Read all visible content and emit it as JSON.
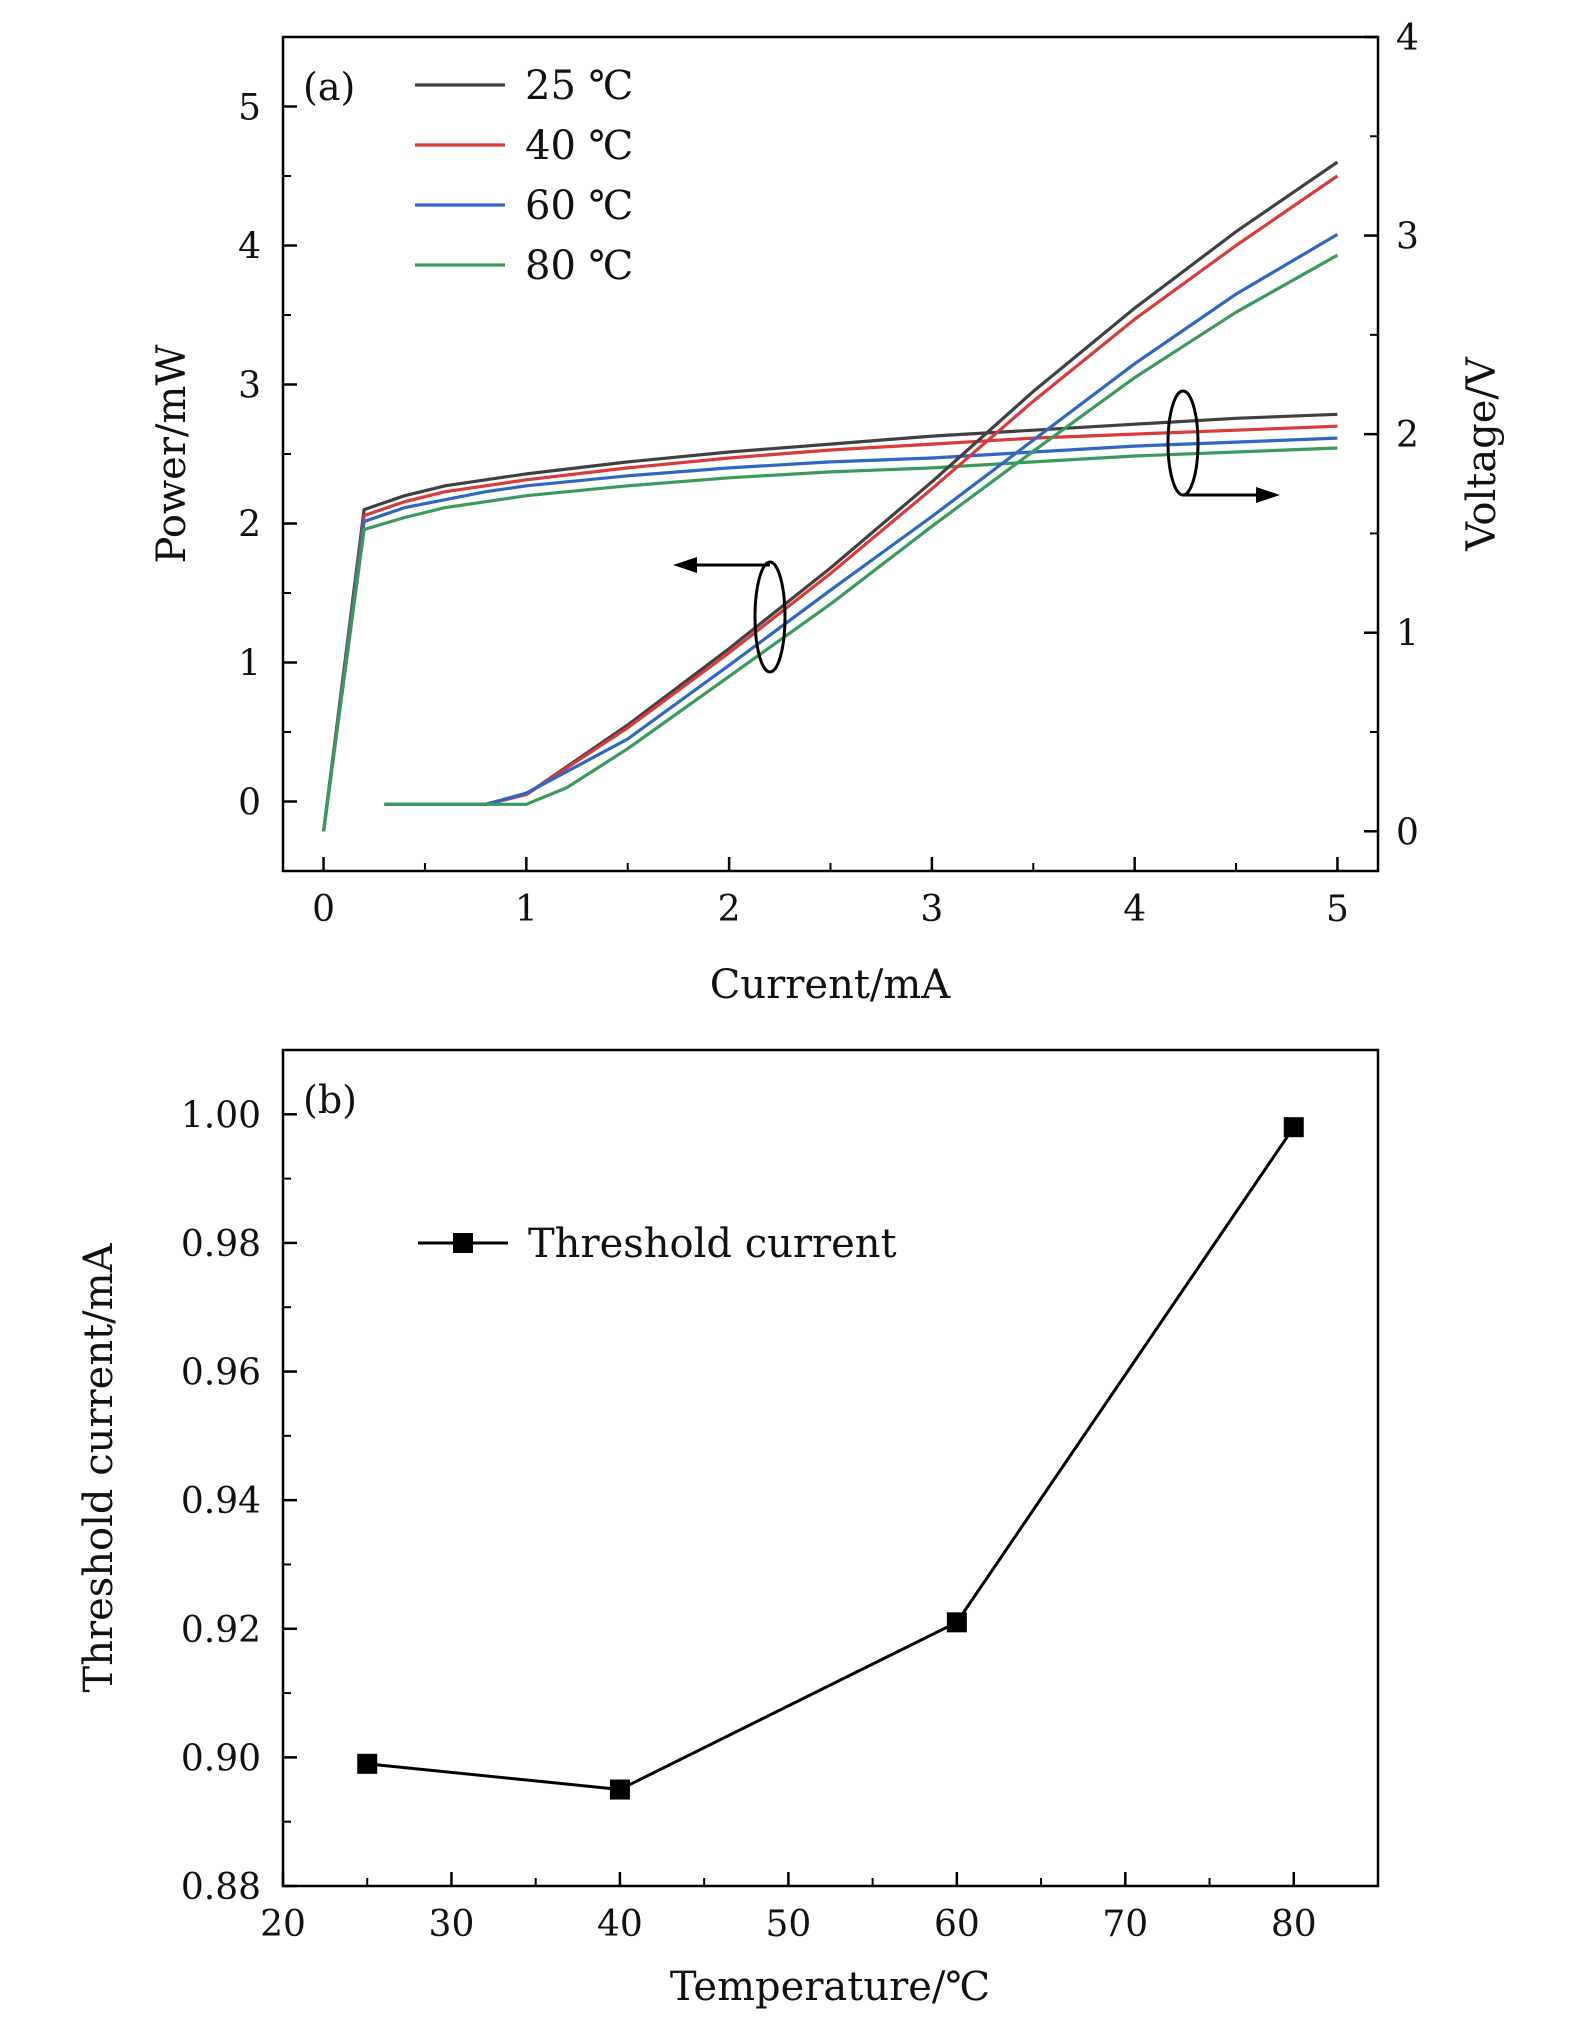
{
  "chart_data": [
    {
      "type": "line",
      "panel_label": "(a)",
      "xlabel": "Current/mA",
      "ylabel": "Power/mW",
      "ylabel_right": "Voltage/V",
      "xlim": [
        -0.2,
        5.2
      ],
      "ylim": [
        -0.5,
        5.5
      ],
      "ylim_right": [
        -0.2,
        4
      ],
      "x_ticks": [
        "0",
        "1",
        "2",
        "3",
        "4",
        "5"
      ],
      "y_ticks": [
        "0",
        "1",
        "2",
        "3",
        "4",
        "5"
      ],
      "y_right_ticks": [
        "0",
        "1",
        "2",
        "3",
        "4"
      ],
      "grid": false,
      "legend": "top-left",
      "series": [
        {
          "name": "25 ℃",
          "color": "#404040",
          "power": {
            "x": [
              0.3,
              0.8,
              1.0,
              1.5,
              2.0,
              2.5,
              3.0,
              3.5,
              4.0,
              4.5,
              5.0
            ],
            "y": [
              -0.02,
              -0.02,
              0.05,
              0.55,
              1.1,
              1.68,
              2.3,
              2.95,
              3.55,
              4.1,
              4.6
            ]
          },
          "voltage": {
            "x": [
              0,
              0.2,
              0.4,
              0.6,
              0.8,
              1.0,
              1.5,
              2.0,
              2.5,
              3.0,
              3.5,
              4.0,
              4.5,
              5.0
            ],
            "y": [
              0.0,
              1.62,
              1.69,
              1.74,
              1.77,
              1.8,
              1.86,
              1.91,
              1.95,
              1.99,
              2.02,
              2.05,
              2.08,
              2.1
            ]
          }
        },
        {
          "name": "40 ℃",
          "color": "#d93a3a",
          "power": {
            "x": [
              0.3,
              0.8,
              1.0,
              1.5,
              2.0,
              2.5,
              3.0,
              3.5,
              4.0,
              4.5,
              5.0
            ],
            "y": [
              -0.02,
              -0.02,
              0.05,
              0.53,
              1.07,
              1.64,
              2.25,
              2.88,
              3.47,
              4.0,
              4.5
            ]
          },
          "voltage": {
            "x": [
              0,
              0.2,
              0.4,
              0.6,
              0.8,
              1.0,
              1.5,
              2.0,
              2.5,
              3.0,
              3.5,
              4.0,
              4.5,
              5.0
            ],
            "y": [
              0.0,
              1.59,
              1.66,
              1.71,
              1.74,
              1.77,
              1.83,
              1.88,
              1.92,
              1.95,
              1.98,
              2.0,
              2.02,
              2.04
            ]
          }
        },
        {
          "name": "60 ℃",
          "color": "#2e66c4",
          "power": {
            "x": [
              0.3,
              0.8,
              1.0,
              1.5,
              2.0,
              2.5,
              3.0,
              3.5,
              4.0,
              4.5,
              5.0
            ],
            "y": [
              -0.02,
              -0.02,
              0.06,
              0.45,
              0.98,
              1.52,
              2.05,
              2.6,
              3.15,
              3.65,
              4.08
            ]
          },
          "voltage": {
            "x": [
              0,
              0.2,
              0.4,
              0.6,
              0.8,
              1.0,
              1.5,
              2.0,
              2.5,
              3.0,
              3.5,
              4.0,
              4.5,
              5.0
            ],
            "y": [
              0.0,
              1.56,
              1.63,
              1.67,
              1.71,
              1.74,
              1.79,
              1.83,
              1.86,
              1.88,
              1.91,
              1.94,
              1.96,
              1.98
            ]
          }
        },
        {
          "name": "80 ℃",
          "color": "#3a9a5c",
          "power": {
            "x": [
              0.3,
              0.8,
              1.0,
              1.2,
              1.5,
              2.0,
              2.5,
              3.0,
              3.5,
              4.0,
              4.5,
              5.0
            ],
            "y": [
              -0.02,
              -0.02,
              -0.02,
              0.1,
              0.38,
              0.9,
              1.42,
              1.98,
              2.52,
              3.05,
              3.52,
              3.93
            ]
          },
          "voltage": {
            "x": [
              0,
              0.2,
              0.4,
              0.6,
              0.8,
              1.0,
              1.5,
              2.0,
              2.5,
              3.0,
              3.5,
              4.0,
              4.5,
              5.0
            ],
            "y": [
              0.0,
              1.52,
              1.58,
              1.63,
              1.66,
              1.69,
              1.74,
              1.78,
              1.81,
              1.83,
              1.86,
              1.89,
              1.91,
              1.93
            ]
          }
        }
      ],
      "annotations": [
        {
          "text": "ellipse with arrow pointing left",
          "target": "Power/mW axis",
          "at": [
            2.2,
            0.95
          ]
        },
        {
          "text": "ellipse with arrow pointing right",
          "target": "Voltage/V axis",
          "at": [
            4.25,
            2.85
          ]
        }
      ]
    },
    {
      "type": "line",
      "panel_label": "(b)",
      "xlabel": "Temperature/℃",
      "ylabel": "Threshold current/mA",
      "xlim": [
        20,
        85
      ],
      "ylim": [
        0.88,
        1.01
      ],
      "x_ticks": [
        "20",
        "30",
        "40",
        "50",
        "60",
        "70",
        "80"
      ],
      "y_ticks": [
        "0.88",
        "0.90",
        "0.92",
        "0.94",
        "0.96",
        "0.98",
        "1.00"
      ],
      "grid": false,
      "legend": "top-left",
      "series": [
        {
          "name": "Threshold current",
          "color": "#000000",
          "marker": "square",
          "x": [
            25,
            40,
            60,
            80
          ],
          "y": [
            0.899,
            0.895,
            0.921,
            0.998
          ]
        }
      ]
    }
  ]
}
